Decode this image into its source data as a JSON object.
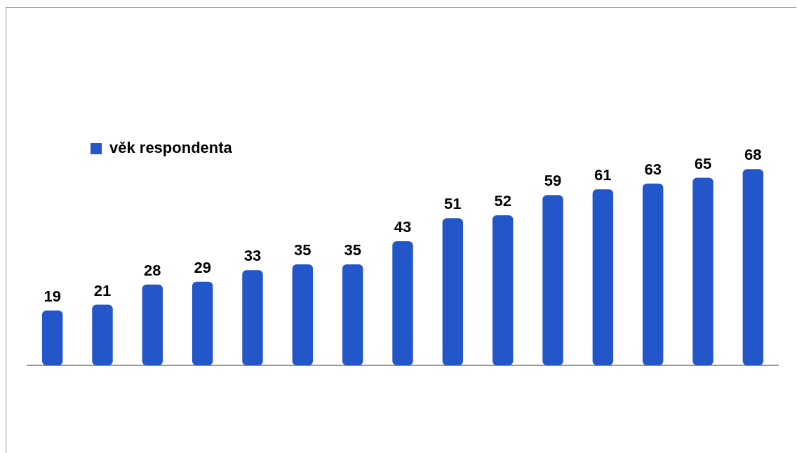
{
  "chart_data": {
    "type": "bar",
    "categories": [
      null,
      null,
      null,
      null,
      null,
      null,
      null,
      null,
      null,
      null,
      null,
      null,
      null,
      null,
      null
    ],
    "series": [
      {
        "name": "věk respondenta",
        "color": "#2356c8",
        "values": [
          19,
          21,
          28,
          29,
          33,
          35,
          35,
          43,
          51,
          52,
          59,
          61,
          63,
          65,
          68
        ]
      }
    ],
    "data_labels": true,
    "legend": "top left",
    "grid": false
  }
}
